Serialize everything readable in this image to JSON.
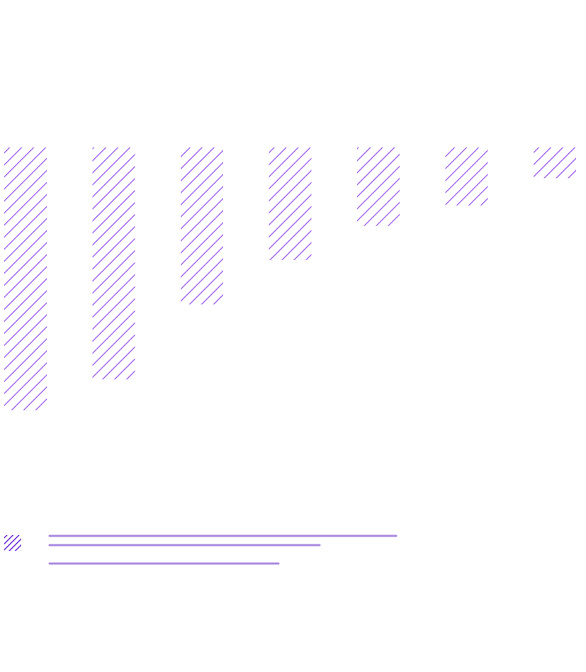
{
  "chart_data": {
    "type": "bar",
    "categories": [
      "",
      "",
      "",
      "",
      "",
      "",
      ""
    ],
    "values": [
      385,
      340,
      230,
      165,
      115,
      85,
      45
    ],
    "ylim": [
      0,
      400
    ],
    "grid": false,
    "orientation": "top-down",
    "legend": {
      "placement": "bottom-left"
    }
  },
  "colors": {
    "bar_hatch": "#a66cf0",
    "legend_swatch": "#6a2ad8",
    "legend_lines": "#a98ae0",
    "background": "#ffffff"
  }
}
